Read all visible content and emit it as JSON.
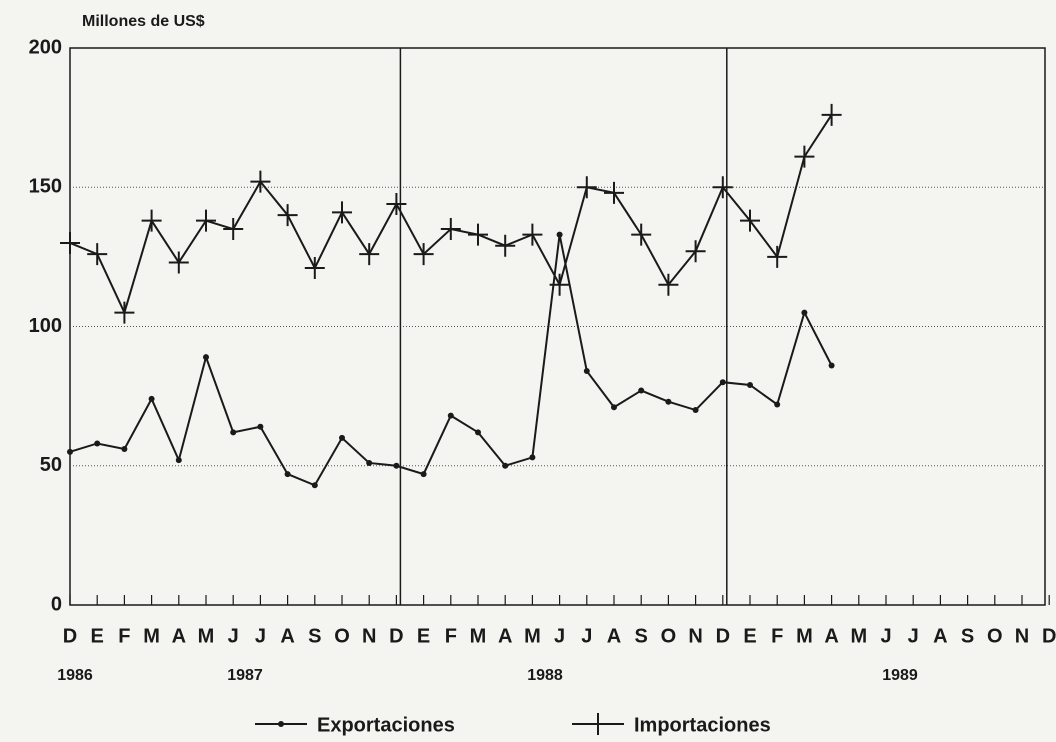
{
  "chart_data": {
    "type": "line",
    "y_axis_label": "Millones de US$",
    "categories": [
      "D",
      "E",
      "F",
      "M",
      "A",
      "M",
      "J",
      "J",
      "A",
      "S",
      "O",
      "N",
      "D",
      "E",
      "F",
      "M",
      "A",
      "M",
      "J",
      "J",
      "A",
      "S",
      "O",
      "N",
      "D",
      "E",
      "F",
      "M",
      "A",
      "M",
      "J",
      "J",
      "A",
      "S",
      "O",
      "N",
      "D"
    ],
    "year_labels": [
      "1986",
      "1987",
      "1988",
      "1989"
    ],
    "series": [
      {
        "name": "Exportaciones",
        "color": "#1a1a1a",
        "marker": "dot",
        "values": [
          55,
          58,
          56,
          74,
          52,
          89,
          62,
          64,
          47,
          43,
          60,
          51,
          50,
          47,
          68,
          62,
          50,
          53,
          133,
          84,
          71,
          77,
          73,
          70,
          80,
          79,
          72,
          105,
          86,
          null,
          null,
          null,
          null,
          null,
          null,
          null,
          null
        ]
      },
      {
        "name": "Importaciones",
        "color": "#1a1a1a",
        "marker": "plus",
        "values": [
          130,
          126,
          105,
          138,
          123,
          138,
          135,
          152,
          140,
          121,
          141,
          126,
          144,
          126,
          135,
          133,
          129,
          133,
          115,
          150,
          148,
          133,
          115,
          127,
          150,
          138,
          125,
          161,
          176,
          null,
          null,
          null,
          null,
          null,
          null,
          null,
          null
        ]
      }
    ],
    "ylim": [
      0,
      200
    ],
    "yticks": [
      0,
      50,
      100,
      150,
      200
    ],
    "grid": true,
    "legend": "bottom"
  }
}
